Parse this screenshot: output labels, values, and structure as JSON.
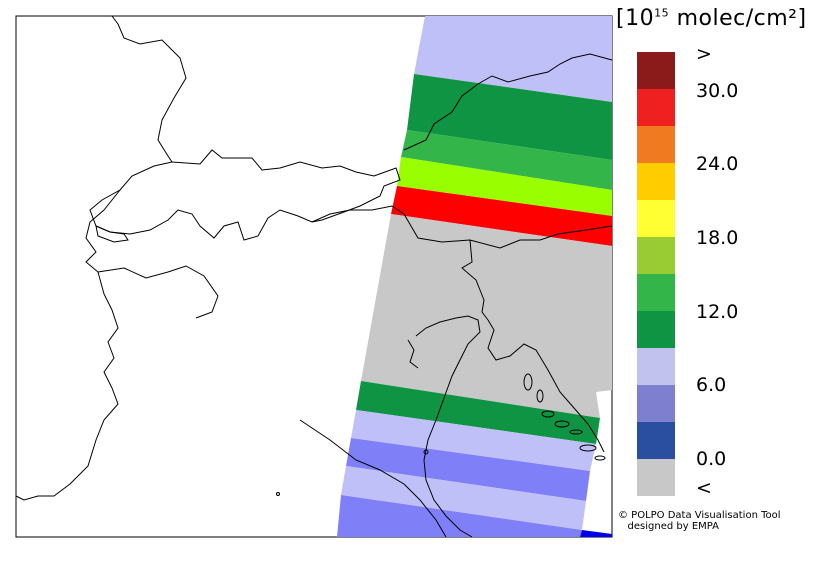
{
  "legend": {
    "title_prefix": "[10",
    "title_exp": "15",
    "title_suffix": " molec/cm²]",
    "colors": [
      "#8b1a1a",
      "#ee2020",
      "#f07a20",
      "#ffcc00",
      "#ffff33",
      "#99cc33",
      "#33b54a",
      "#0f9444",
      "#c2c2ee",
      "#7f7fd0",
      "#2a4fa0",
      "#c8c8c8"
    ],
    "labels": [
      ">",
      "30.0",
      "24.0",
      "18.0",
      "12.0",
      "6.0",
      "0.0",
      "<"
    ]
  },
  "credit": {
    "line1": "© POLPO Data Visualisation Tool",
    "line2": "   designed by EMPA"
  },
  "swath": {
    "bands": [
      {
        "color": "#c0c0f8"
      },
      {
        "color": "#0f9444"
      },
      {
        "color": "#33b54a"
      },
      {
        "color": "#99ff00"
      },
      {
        "color": "#ff0000"
      },
      {
        "color": "#c8c8c8"
      },
      {
        "color": "#0f9444"
      },
      {
        "color": "#c0c0f8"
      },
      {
        "color": "#7f7ff8"
      },
      {
        "color": "#c0c0f8"
      },
      {
        "color": "#7f7ff8"
      }
    ]
  }
}
